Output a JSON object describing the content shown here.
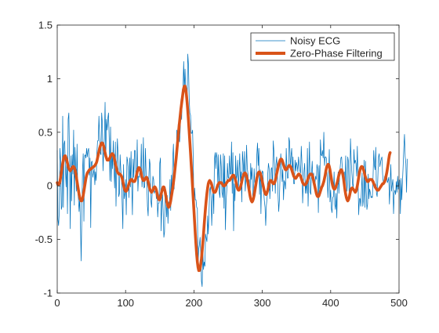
{
  "chart_data": {
    "type": "line",
    "title": "",
    "xlabel": "",
    "ylabel": "",
    "xlim": [
      0,
      500
    ],
    "ylim": [
      -1,
      1.5
    ],
    "x_ticks": [
      0,
      100,
      200,
      300,
      400,
      500
    ],
    "y_ticks": [
      -1,
      -0.5,
      0,
      0.5,
      1,
      1.5
    ],
    "x_tick_labels": [
      "0",
      "100",
      "200",
      "300",
      "400",
      "500"
    ],
    "y_tick_labels": [
      "-1",
      "-0.5",
      "0",
      "0.5",
      "1",
      "1.5"
    ],
    "grid": false,
    "legend_position": "top-right",
    "x_step": 1,
    "series": [
      {
        "name": "Noisy ECG",
        "color": "#0072bd",
        "line_style": "thin",
        "values": [
          0.33,
          -0.31,
          -0.37,
          -0.24,
          0.35,
          0.23,
          -0.22,
          -0.19,
          0.65,
          -0.2,
          0.39,
          0.42,
          0.15,
          -0.01,
          0.27,
          -0.26,
          0.62,
          0.68,
          0.27,
          -0.4,
          0.28,
          -0.14,
          0.29,
          0.11,
          0.52,
          -0.18,
          0.36,
          0.17,
          -0.05,
          0.39,
          -0.05,
          -0.12,
          -0.24,
          -0.1,
          -0.36,
          -0.7,
          -0.27,
          0.14,
          0.3,
          -0.33,
          0.28,
          0.29,
          0.26,
          0.35,
          0.27,
          0.33,
          0.35,
          0.1,
          0.26,
          -0.39,
          0.22,
          0.23,
          0.08,
          0.12,
          0.16,
          0.01,
          0.13,
          0.05,
          0.3,
          0.42,
          0.42,
          0.65,
          0.46,
          0.31,
          0.29,
          0.68,
          0.59,
          0.14,
          0.34,
          0.44,
          0.78,
          0.25,
          0.62,
          0.52,
          0.63,
          0.68,
          0.45,
          0.05,
          0.55,
          0.04,
          0.31,
          0.16,
          0.42,
          0.16,
          -0.02,
          0.41,
          -0.19,
          0.18,
          0.44,
          0.29,
          -0.1,
          -0.07,
          0.29,
          0.15,
          0.08,
          -0.16,
          -0.4,
          0.2,
          -0.12,
          -0.07,
          0.06,
          -0.27,
          0.27,
          0.23,
          0.15,
          -0.11,
          0.26,
          -0.01,
          0.32,
          0.01,
          -0.27,
          0.25,
          0.08,
          0.33,
          0.33,
          0.08,
          0.09,
          0.43,
          -0.05,
          0.09,
          0.08,
          0.14,
          0.08,
          0.39,
          -0.01,
          0.09,
          0.45,
          -0.02,
          -0.01,
          0.35,
          0.12,
          0.04,
          -0.19,
          -0.28,
          0.07,
          0.25,
          0.19,
          -0.14,
          -0.2,
          -0.05,
          0.09,
          0.06,
          -0.07,
          -0.05,
          -0.02,
          -0.12,
          -0.03,
          -0.29,
          -0.16,
          -0.16,
          0.21,
          0.26,
          -0.42,
          -0.17,
          -0.08,
          -0.23,
          -0.48,
          -0.43,
          -0.01,
          -0.13,
          -0.29,
          -0.09,
          -0.35,
          -0.15,
          -0.21,
          0.06,
          -0.23,
          0.1,
          -0.09,
          0.26,
          0.39,
          -0.03,
          0.17,
          0.16,
          0.2,
          0.52,
          0.42,
          0.58,
          0.47,
          0.41,
          0.54,
          0.81,
          0.62,
          0.9,
          0.9,
          1.16,
          0.88,
          1.09,
          0.88,
          0.8,
          0.78,
          1.23,
          1.13,
          0.82,
          0.68,
          0.66,
          0.49,
          0.49,
          0.52,
          0.25,
          -0.24,
          -0.02,
          -0.13,
          -0.13,
          -0.2,
          -0.21,
          -0.73,
          -0.59,
          -0.55,
          -0.48,
          -0.63,
          -0.89,
          -0.94,
          -0.6,
          -0.78,
          -0.71,
          -0.75,
          -0.45,
          -0.49,
          -0.52,
          -0.28,
          -0.45,
          -0.26,
          -0.04,
          -0.01,
          -0.09,
          -0.37,
          -0.15,
          -0.03,
          -0.26,
          0.25,
          0.31,
          0.16,
          0.31,
          0.26,
          -0.01,
          0.29,
          -0.06,
          -0.11,
          0.29,
          0.18,
          -0.06,
          -0.11,
          0.3,
          -0.21,
          0.28,
          -0.41,
          -0.15,
          -0.04,
          0.21,
          0.08,
          0.07,
          0.28,
          0.11,
          0.11,
          0.41,
          -0.07,
          0.31,
          -0.42,
          0.02,
          -0.14,
          0.28,
          0.05,
          0.1,
          0.24,
          -0.02,
          0.12,
          0.3,
          0.04,
          0.13,
          -0.15,
          0.32,
          0.22,
          0.08,
          0.32,
          -0.05,
          0.07,
          0.38,
          0.17,
          0.11,
          -0.03,
          0.06,
          -0.12,
          0.21,
          0.06,
          0.17,
          -0.1,
          -0.13,
          0.16,
          0.03,
          0.05,
          0.06,
          0.29,
          0.4,
          0.19,
          0.35,
          -0.08,
          0.15,
          -0.26,
          0.09,
          0.14,
          0.13,
          -0.05,
          -0.14,
          -0.2,
          -0.37,
          -0.18,
          -0.11,
          0.11,
          0.21,
          0.16,
          -0.12,
          0.03,
          0.16,
          0.17,
          -0.05,
          0.42,
          0.32,
          0.17,
          -0.07,
          0.2,
          0.27,
          0.13,
          -0.08,
          -0.24,
          -0.13,
          0.1,
          0.3,
          0.21,
          0.04,
          0.15,
          -0.13,
          0.05,
          0.03,
          -0.03,
          0.35,
          0.14,
          0.07,
          0.08,
          0.45,
          0.41,
          0.16,
          0.28,
          0.35,
          0.1,
          0.27,
          0.02,
          0.02,
          0.24,
          0.14,
          0.22,
          0.19,
          0.13,
          0.27,
          0.2,
          0.14,
          0.12,
          0.37,
          0.21,
          -0.16,
          0.03,
          0.14,
          0.21,
          -0.07,
          0.03,
          -0.07,
          0.35,
          -0.19,
          0.11,
          0.41,
          -0.06,
          -0.08,
          0.12,
          0.23,
          0.03,
          0.12,
          0.02,
          0.02,
          0.09,
          0.06,
          0.2,
          0.16,
          -0.25,
          0.19,
          -0.05,
          0.43,
          0.29,
          0.28,
          0.33,
          0.26,
          0.5,
          0.19,
          0.27,
          0.27,
          0.25,
          0.06,
          -0.11,
          0.08,
          0.34,
          -0.15,
          -0.04,
          -0.21,
          -0.25,
          -0.11,
          -0.1,
          0.13,
          -0.17,
          -0.22,
          -0.07,
          -0.3,
          0.05,
          0.13,
          -0.07,
          0.09,
          0.18,
          0.26,
          0.27,
          0.17,
          0.13,
          0.1,
          0.13,
          -0.08,
          0.28,
          0.05,
          -0.05,
          0.27,
          0.23,
          -0.07,
          -0.03,
          0.44,
          0.24,
          0.12,
          0.02,
          -0.03,
          0.34,
          0.21,
          0.24,
          0.21,
          0.09,
          0.37,
          0.06,
          -0.27,
          -0.12,
          -0.12,
          -0.19,
          -0.06,
          0.12,
          -0.19,
          -0.13,
          0.24,
          -0.2,
          0.23,
          -0.05,
          -0.22,
          -0.17,
          0.11,
          -0.12,
          -0.03,
          -0.06,
          -0.11,
          -0.1,
          -0.11,
          0.08,
          0.33,
          0.19,
          0.15,
          0.36,
          -0.07,
          -0.1,
          0.07,
          0.27,
          0.3,
          0.18,
          0.22,
          0.25,
          0.27,
          0.11,
          0.03,
          0.04,
          0.09,
          0.08,
          0.08,
          0.1,
          0.03,
          0.05,
          0.08,
          -0.17,
          0.01,
          0.2,
          -0.05,
          0.01,
          0.06,
          -0.26,
          -0.07,
          -0.04,
          -0.08,
          0.04,
          -0.06,
          0.09,
          -0.03,
          0.06,
          0.05,
          -0.26,
          0.07,
          -0.13,
          0.03,
          0.18,
          0.35,
          0.48,
          0.27,
          0.21,
          -0.06,
          0.25
        ]
      },
      {
        "name": "Zero-Phase Filtering",
        "color": "#d95319",
        "line_style": "thick",
        "values": [
          0.03,
          0.01,
          0.01,
          0.02,
          0.04,
          0.08,
          0.12,
          0.17,
          0.21,
          0.24,
          0.27,
          0.28,
          0.28,
          0.26,
          0.24,
          0.21,
          0.18,
          0.16,
          0.15,
          0.14,
          0.15,
          0.16,
          0.17,
          0.18,
          0.18,
          0.17,
          0.15,
          0.12,
          0.08,
          0.04,
          0.0,
          -0.04,
          -0.08,
          -0.11,
          -0.13,
          -0.14,
          -0.14,
          -0.12,
          -0.09,
          -0.05,
          -0.01,
          0.03,
          0.07,
          0.1,
          0.12,
          0.13,
          0.14,
          0.15,
          0.15,
          0.16,
          0.16,
          0.17,
          0.17,
          0.18,
          0.18,
          0.19,
          0.2,
          0.21,
          0.23,
          0.26,
          0.29,
          0.32,
          0.35,
          0.37,
          0.39,
          0.4,
          0.4,
          0.39,
          0.37,
          0.34,
          0.31,
          0.28,
          0.26,
          0.24,
          0.24,
          0.24,
          0.25,
          0.26,
          0.28,
          0.29,
          0.3,
          0.3,
          0.29,
          0.27,
          0.24,
          0.21,
          0.18,
          0.15,
          0.13,
          0.12,
          0.11,
          0.11,
          0.11,
          0.1,
          0.09,
          0.07,
          0.04,
          0.01,
          -0.02,
          -0.04,
          -0.05,
          -0.05,
          -0.04,
          -0.02,
          0.0,
          0.02,
          0.04,
          0.05,
          0.06,
          0.06,
          0.05,
          0.04,
          0.04,
          0.04,
          0.05,
          0.07,
          0.1,
          0.13,
          0.15,
          0.17,
          0.17,
          0.16,
          0.14,
          0.11,
          0.08,
          0.06,
          0.05,
          0.05,
          0.06,
          0.07,
          0.08,
          0.08,
          0.06,
          0.04,
          0.01,
          -0.02,
          -0.04,
          -0.05,
          -0.06,
          -0.05,
          -0.04,
          -0.02,
          -0.01,
          -0.01,
          -0.02,
          -0.04,
          -0.07,
          -0.1,
          -0.12,
          -0.13,
          -0.13,
          -0.11,
          -0.08,
          -0.05,
          -0.03,
          -0.01,
          -0.01,
          -0.03,
          -0.06,
          -0.1,
          -0.14,
          -0.17,
          -0.19,
          -0.2,
          -0.19,
          -0.17,
          -0.14,
          -0.1,
          -0.06,
          -0.02,
          0.03,
          0.08,
          0.14,
          0.2,
          0.26,
          0.33,
          0.4,
          0.47,
          0.54,
          0.6,
          0.66,
          0.72,
          0.77,
          0.82,
          0.87,
          0.91,
          0.93,
          0.93,
          0.9,
          0.85,
          0.78,
          0.7,
          0.61,
          0.51,
          0.41,
          0.31,
          0.2,
          0.1,
          -0.01,
          -0.12,
          -0.23,
          -0.34,
          -0.45,
          -0.55,
          -0.64,
          -0.71,
          -0.76,
          -0.79,
          -0.79,
          -0.77,
          -0.73,
          -0.68,
          -0.61,
          -0.53,
          -0.45,
          -0.36,
          -0.28,
          -0.2,
          -0.13,
          -0.07,
          -0.02,
          0.02,
          0.04,
          0.05,
          0.04,
          0.03,
          0.01,
          -0.02,
          -0.04,
          -0.06,
          -0.06,
          -0.06,
          -0.05,
          -0.03,
          -0.01,
          0.01,
          0.02,
          0.03,
          0.03,
          0.03,
          0.03,
          0.02,
          0.01,
          0.0,
          0.0,
          0.0,
          0.01,
          0.02,
          0.03,
          0.04,
          0.05,
          0.05,
          0.05,
          0.06,
          0.07,
          0.08,
          0.09,
          0.1,
          0.1,
          0.09,
          0.07,
          0.05,
          0.02,
          -0.01,
          -0.03,
          -0.04,
          -0.04,
          -0.03,
          -0.01,
          0.01,
          0.04,
          0.07,
          0.09,
          0.11,
          0.12,
          0.12,
          0.11,
          0.09,
          0.06,
          0.03,
          -0.01,
          -0.05,
          -0.09,
          -0.12,
          -0.14,
          -0.15,
          -0.14,
          -0.12,
          -0.09,
          -0.05,
          -0.01,
          0.03,
          0.07,
          0.1,
          0.12,
          0.13,
          0.13,
          0.12,
          0.1,
          0.07,
          0.04,
          0.01,
          -0.02,
          -0.05,
          -0.07,
          -0.08,
          -0.08,
          -0.06,
          -0.04,
          -0.01,
          0.02,
          0.04,
          0.05,
          0.05,
          0.04,
          0.03,
          0.02,
          0.02,
          0.03,
          0.05,
          0.08,
          0.11,
          0.14,
          0.17,
          0.2,
          0.22,
          0.24,
          0.25,
          0.25,
          0.24,
          0.22,
          0.2,
          0.18,
          0.16,
          0.15,
          0.15,
          0.16,
          0.17,
          0.18,
          0.19,
          0.19,
          0.18,
          0.17,
          0.15,
          0.13,
          0.11,
          0.09,
          0.08,
          0.07,
          0.07,
          0.08,
          0.09,
          0.1,
          0.11,
          0.11,
          0.1,
          0.09,
          0.07,
          0.05,
          0.03,
          0.02,
          0.01,
          0.01,
          0.01,
          0.02,
          0.03,
          0.05,
          0.07,
          0.09,
          0.1,
          0.11,
          0.11,
          0.11,
          0.1,
          0.08,
          0.05,
          0.02,
          -0.01,
          -0.04,
          -0.07,
          -0.09,
          -0.1,
          -0.1,
          -0.09,
          -0.07,
          -0.05,
          -0.03,
          -0.01,
          0.0,
          0.02,
          0.04,
          0.07,
          0.1,
          0.14,
          0.17,
          0.19,
          0.2,
          0.2,
          0.18,
          0.15,
          0.11,
          0.07,
          0.03,
          0.0,
          -0.02,
          -0.03,
          -0.03,
          -0.02,
          0.0,
          0.02,
          0.04,
          0.07,
          0.1,
          0.12,
          0.14,
          0.15,
          0.15,
          0.13,
          0.1,
          0.06,
          0.01,
          -0.04,
          -0.08,
          -0.11,
          -0.13,
          -0.14,
          -0.13,
          -0.11,
          -0.08,
          -0.05,
          -0.03,
          -0.02,
          -0.02,
          -0.03,
          -0.04,
          -0.05,
          -0.06,
          -0.05,
          -0.03,
          0.0,
          0.04,
          0.08,
          0.12,
          0.15,
          0.17,
          0.18,
          0.18,
          0.17,
          0.15,
          0.13,
          0.1,
          0.08,
          0.06,
          0.05,
          0.04,
          0.04,
          0.05,
          0.06,
          0.06,
          0.06,
          0.06,
          0.05,
          0.04,
          0.02,
          0.01,
          -0.01,
          -0.02,
          -0.03,
          -0.04,
          -0.04,
          -0.04,
          -0.03,
          -0.02,
          -0.01,
          0.0,
          0.01,
          0.02,
          0.02,
          0.03,
          0.04,
          0.06,
          0.09,
          0.12,
          0.16,
          0.2,
          0.25,
          0.29,
          0.31
        ]
      }
    ]
  }
}
